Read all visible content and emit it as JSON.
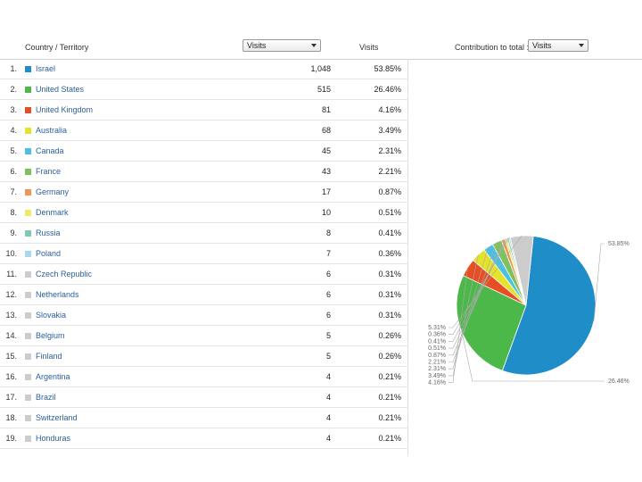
{
  "header": {
    "column_country": "Country / Territory",
    "metric_select": "Visits",
    "column_visits": "Visits",
    "contribution_label": "Contribution to total :",
    "contribution_select": "Visits"
  },
  "rows": [
    {
      "rank": "1.",
      "country": "Israel",
      "visits": "1,048",
      "percent": "53.85%",
      "color": "#1f8dc8"
    },
    {
      "rank": "2.",
      "country": "United States",
      "visits": "515",
      "percent": "26.46%",
      "color": "#4cb84a"
    },
    {
      "rank": "3.",
      "country": "United Kingdom",
      "visits": "81",
      "percent": "4.16%",
      "color": "#e84e23"
    },
    {
      "rank": "4.",
      "country": "Australia",
      "visits": "68",
      "percent": "3.49%",
      "color": "#e5e22a"
    },
    {
      "rank": "5.",
      "country": "Canada",
      "visits": "45",
      "percent": "2.31%",
      "color": "#4cc0e0"
    },
    {
      "rank": "6.",
      "country": "France",
      "visits": "43",
      "percent": "2.21%",
      "color": "#7dc25a"
    },
    {
      "rank": "7.",
      "country": "Germany",
      "visits": "17",
      "percent": "0.87%",
      "color": "#f0955a"
    },
    {
      "rank": "8.",
      "country": "Denmark",
      "visits": "10",
      "percent": "0.51%",
      "color": "#efe96a"
    },
    {
      "rank": "9.",
      "country": "Russia",
      "visits": "8",
      "percent": "0.41%",
      "color": "#7fc9b0"
    },
    {
      "rank": "10.",
      "country": "Poland",
      "visits": "7",
      "percent": "0.36%",
      "color": "#a8d8ea"
    },
    {
      "rank": "11.",
      "country": "Czech Republic",
      "visits": "6",
      "percent": "0.31%",
      "color": "#cccccc"
    },
    {
      "rank": "12.",
      "country": "Netherlands",
      "visits": "6",
      "percent": "0.31%",
      "color": "#cccccc"
    },
    {
      "rank": "13.",
      "country": "Slovakia",
      "visits": "6",
      "percent": "0.31%",
      "color": "#cccccc"
    },
    {
      "rank": "14.",
      "country": "Belgium",
      "visits": "5",
      "percent": "0.26%",
      "color": "#cccccc"
    },
    {
      "rank": "15.",
      "country": "Finland",
      "visits": "5",
      "percent": "0.26%",
      "color": "#cccccc"
    },
    {
      "rank": "16.",
      "country": "Argentina",
      "visits": "4",
      "percent": "0.21%",
      "color": "#cccccc"
    },
    {
      "rank": "17.",
      "country": "Brazil",
      "visits": "4",
      "percent": "0.21%",
      "color": "#cccccc"
    },
    {
      "rank": "18.",
      "country": "Switzerland",
      "visits": "4",
      "percent": "0.21%",
      "color": "#cccccc"
    },
    {
      "rank": "19.",
      "country": "Honduras",
      "visits": "4",
      "percent": "0.21%",
      "color": "#cccccc"
    }
  ],
  "chart_data": {
    "type": "pie",
    "slices": [
      {
        "label": "53.85%",
        "value": 53.85,
        "color": "#1f8dc8"
      },
      {
        "label": "26.46%",
        "value": 26.46,
        "color": "#4cb84a"
      },
      {
        "label": "4.16%",
        "value": 4.16,
        "color": "#e84e23"
      },
      {
        "label": "3.49%",
        "value": 3.49,
        "color": "#e5e22a"
      },
      {
        "label": "2.31%",
        "value": 2.31,
        "color": "#4cc0e0"
      },
      {
        "label": "2.21%",
        "value": 2.21,
        "color": "#7dc25a"
      },
      {
        "label": "0.87%",
        "value": 0.87,
        "color": "#f0955a"
      },
      {
        "label": "0.51%",
        "value": 0.51,
        "color": "#efe96a"
      },
      {
        "label": "0.41%",
        "value": 0.41,
        "color": "#7fc9b0"
      },
      {
        "label": "0.36%",
        "value": 0.36,
        "color": "#a8d8ea"
      },
      {
        "label": "5.31%",
        "value": 5.31,
        "color": "#cccccc"
      }
    ]
  }
}
